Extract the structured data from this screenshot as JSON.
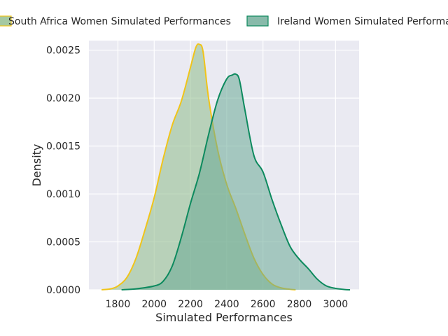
{
  "chart_data": {
    "type": "area",
    "title": "",
    "xlabel": "Simulated Performances",
    "ylabel": "Density",
    "xlim": [
      1640,
      3130
    ],
    "ylim": [
      0,
      0.0026
    ],
    "x_ticks": [
      1800,
      2000,
      2200,
      2400,
      2600,
      2800,
      3000
    ],
    "x_tick_labels": [
      "1800",
      "2000",
      "2200",
      "2400",
      "2600",
      "2800",
      "3000"
    ],
    "y_ticks": [
      0,
      0.0005,
      0.001,
      0.0015,
      0.002,
      0.0025
    ],
    "y_tick_labels": [
      "0.0000",
      "0.0005",
      "0.0010",
      "0.0015",
      "0.0020",
      "0.0025"
    ],
    "grid": true,
    "legend_position": "top",
    "background_color": "#eaeaf2",
    "series": [
      {
        "name": "South Africa Women Simulated Performances",
        "line_color": "#f0c419",
        "fill_color": "#8ebc8b",
        "x": [
          1710,
          1760,
          1800,
          1850,
          1900,
          1950,
          2000,
          2050,
          2100,
          2150,
          2200,
          2230,
          2250,
          2270,
          2300,
          2350,
          2400,
          2450,
          2500,
          2550,
          2600,
          2650,
          2700,
          2750,
          2780
        ],
        "values": [
          0.0,
          1e-05,
          4e-05,
          0.00013,
          0.00033,
          0.00063,
          0.00096,
          0.00137,
          0.00172,
          0.00197,
          0.00232,
          0.00253,
          0.00256,
          0.00248,
          0.002,
          0.00146,
          0.0011,
          0.00085,
          0.00058,
          0.00033,
          0.00016,
          6e-05,
          2e-05,
          5e-06,
          0.0
        ]
      },
      {
        "name": "Ireland Women Simulated Performances",
        "line_color": "#0d8a5e",
        "fill_color": "#6aa995",
        "x": [
          1820,
          1900,
          2000,
          2050,
          2100,
          2150,
          2200,
          2250,
          2300,
          2350,
          2400,
          2430,
          2450,
          2470,
          2500,
          2550,
          2600,
          2650,
          2700,
          2750,
          2800,
          2850,
          2900,
          2950,
          3000,
          3050,
          3080
        ],
        "values": [
          0.0,
          1e-05,
          4e-05,
          9e-05,
          0.00025,
          0.00055,
          0.0009,
          0.00122,
          0.00162,
          0.00198,
          0.0022,
          0.00224,
          0.00225,
          0.00219,
          0.00188,
          0.0014,
          0.00123,
          0.00094,
          0.00068,
          0.00045,
          0.00032,
          0.00022,
          0.00011,
          4e-05,
          1.5e-05,
          3e-06,
          0.0
        ]
      }
    ]
  }
}
